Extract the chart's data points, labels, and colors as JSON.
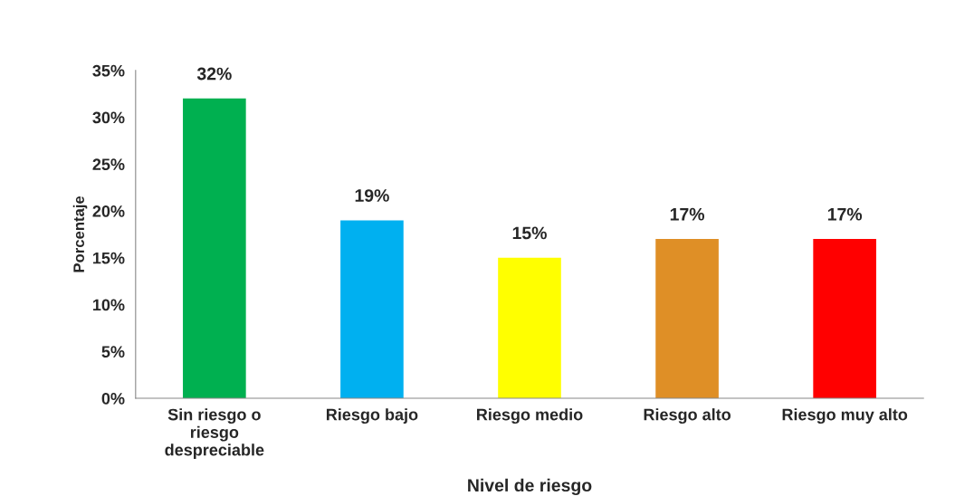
{
  "chart_data": {
    "type": "bar",
    "xlabel": "Nivel de riesgo",
    "ylabel": "Porcentaje",
    "categories": [
      "Sin riesgo o\nriesgo\ndespreciable",
      "Riesgo bajo",
      "Riesgo medio",
      "Riesgo alto",
      "Riesgo muy alto"
    ],
    "values": [
      32,
      19,
      15,
      17,
      17
    ],
    "colors": [
      "#00b050",
      "#00b0f0",
      "#ffff00",
      "#df8f26",
      "#ff0000"
    ],
    "value_labels": [
      "32%",
      "19%",
      "15%",
      "17%",
      "17%"
    ],
    "ylim": [
      0,
      35
    ],
    "yticks": [
      {
        "value": 0,
        "label": "0%"
      },
      {
        "value": 5,
        "label": "5%"
      },
      {
        "value": 10,
        "label": "10%"
      },
      {
        "value": 15,
        "label": "15%"
      },
      {
        "value": 20,
        "label": "20%"
      },
      {
        "value": 25,
        "label": "25%"
      },
      {
        "value": 30,
        "label": "30%"
      },
      {
        "value": 35,
        "label": "35%"
      }
    ],
    "grid": false,
    "legend": false
  }
}
